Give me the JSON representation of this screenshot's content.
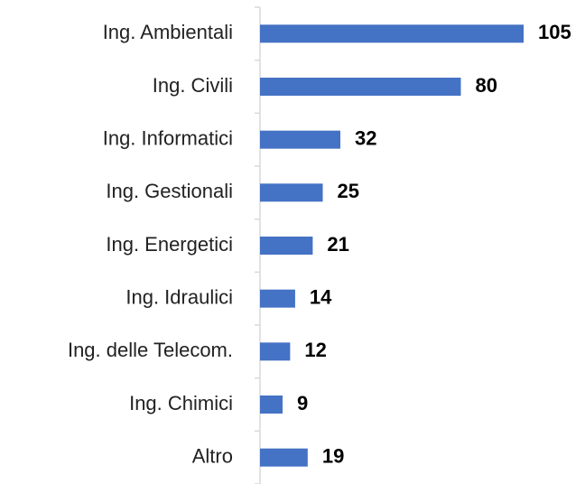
{
  "chart_data": {
    "type": "bar",
    "orientation": "horizontal",
    "categories": [
      "Ing. Ambientali",
      "Ing. Civili",
      "Ing. Informatici",
      "Ing. Gestionali",
      "Ing. Energetici",
      "Ing. Idraulici",
      "Ing. delle Telecom.",
      "Ing. Chimici",
      "Altro"
    ],
    "values": [
      105,
      80,
      32,
      25,
      21,
      14,
      12,
      9,
      19
    ],
    "color": "#4472c4"
  }
}
